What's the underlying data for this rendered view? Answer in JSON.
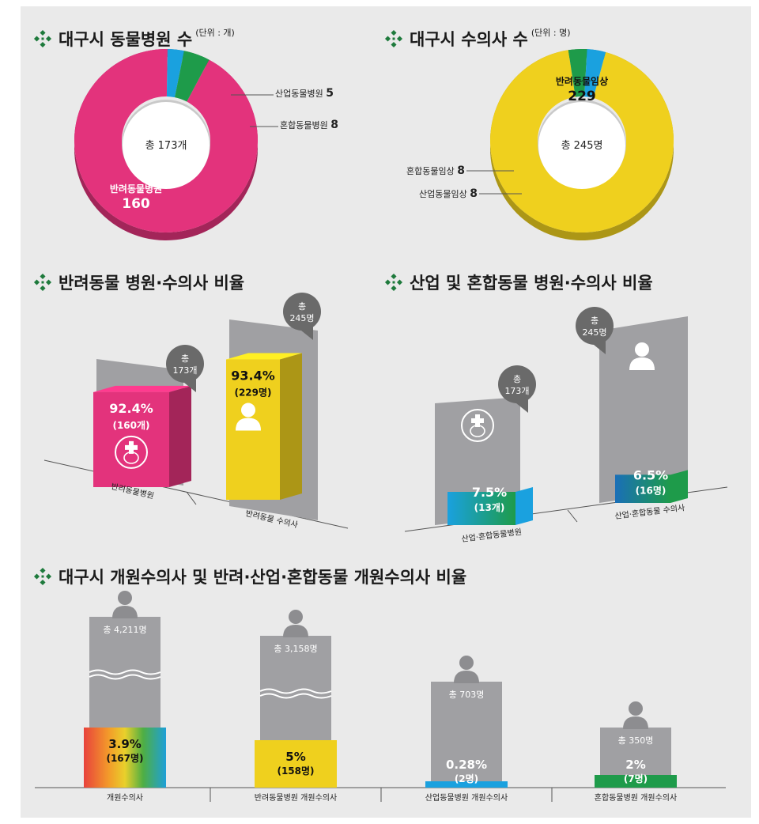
{
  "colors": {
    "magenta": "#e3337c",
    "yellow": "#efd01e",
    "green": "#1e9b4a",
    "blue": "#1aa1df",
    "gray": "#9e9ea1",
    "dark": "#666666"
  },
  "sections": {
    "hospitals_title": "대구시 동물병원 수",
    "hospitals_unit": "(단위 : 개)",
    "vets_title": "대구시 수의사 수",
    "vets_unit": "(단위 : 명)",
    "companion_title": "반려동물 병원·수의사 비율",
    "industrial_title": "산업 및 혼합동물 병원·수의사 비율",
    "opening_title": "대구시 개원수의사 및 반려·산업·혼합동물 개원수의사 비율"
  },
  "chart_data": [
    {
      "type": "pie",
      "id": "hospitals",
      "title": "대구시 동물병원 수",
      "unit": "(단위 : 개)",
      "total_label": "총 173개",
      "colors": [
        "#e3337c",
        "#1aa1df",
        "#1e9b4a"
      ],
      "slices": [
        {
          "label": "반려동물병원",
          "value": 160
        },
        {
          "label": "산업동물병원",
          "value": 5
        },
        {
          "label": "혼합동물병원",
          "value": 8
        }
      ]
    },
    {
      "type": "pie",
      "id": "vets",
      "title": "대구시 수의사 수",
      "unit": "(단위 : 명)",
      "total_label": "총 245명",
      "colors": [
        "#efd01e",
        "#1e9b4a",
        "#1aa1df"
      ],
      "slices": [
        {
          "label": "반려동물임상",
          "value": 229
        },
        {
          "label": "혼합동물임상",
          "value": 8
        },
        {
          "label": "산업동물임상",
          "value": 8
        }
      ]
    },
    {
      "type": "bar",
      "id": "companion",
      "title": "반려동물 병원·수의사 비율",
      "categories": [
        "반려동물병원",
        "반려동물 수의사"
      ],
      "values": [
        92.4,
        93.4
      ],
      "value_labels": [
        "92.4%",
        "93.4%"
      ],
      "count_labels": [
        "(160개)",
        "(229명)"
      ],
      "total_labels": [
        [
          "총",
          "173개"
        ],
        [
          "총",
          "245명"
        ]
      ],
      "colors": [
        "#e3337c",
        "#efd01e"
      ]
    },
    {
      "type": "bar",
      "id": "industrial",
      "title": "산업 및 혼합동물 병원·수의사 비율",
      "categories": [
        "산업·혼합동물병원",
        "산업·혼합동물 수의사"
      ],
      "values": [
        7.5,
        6.5
      ],
      "value_labels": [
        "7.5%",
        "6.5%"
      ],
      "count_labels": [
        "(13개)",
        "(16명)"
      ],
      "total_labels": [
        [
          "총",
          "173개"
        ],
        [
          "총",
          "245명"
        ]
      ],
      "colors": [
        "#1aa1df",
        "#1e9b4a"
      ]
    },
    {
      "type": "bar",
      "id": "opening",
      "title": "대구시 개원수의사 및 반려·산업·혼합동물 개원수의사 비율",
      "categories": [
        "개원수의사",
        "반려동물병원 개원수의사",
        "산업동물병원 개원수의사",
        "혼합동물병원 개원수의사"
      ],
      "totals": [
        4211,
        3158,
        703,
        350
      ],
      "total_labels": [
        "총 4,211명",
        "총 3,158명",
        "총 703명",
        "총 350명"
      ],
      "values": [
        3.9,
        5,
        0.28,
        2
      ],
      "value_labels": [
        "3.9%",
        "5%",
        "0.28%",
        "2%"
      ],
      "count_labels": [
        "(167명)",
        "(158명)",
        "(2명)",
        "(7명)"
      ],
      "colors": [
        "rainbow",
        "#efd01e",
        "#1aa1df",
        "#1e9b4a"
      ]
    }
  ]
}
